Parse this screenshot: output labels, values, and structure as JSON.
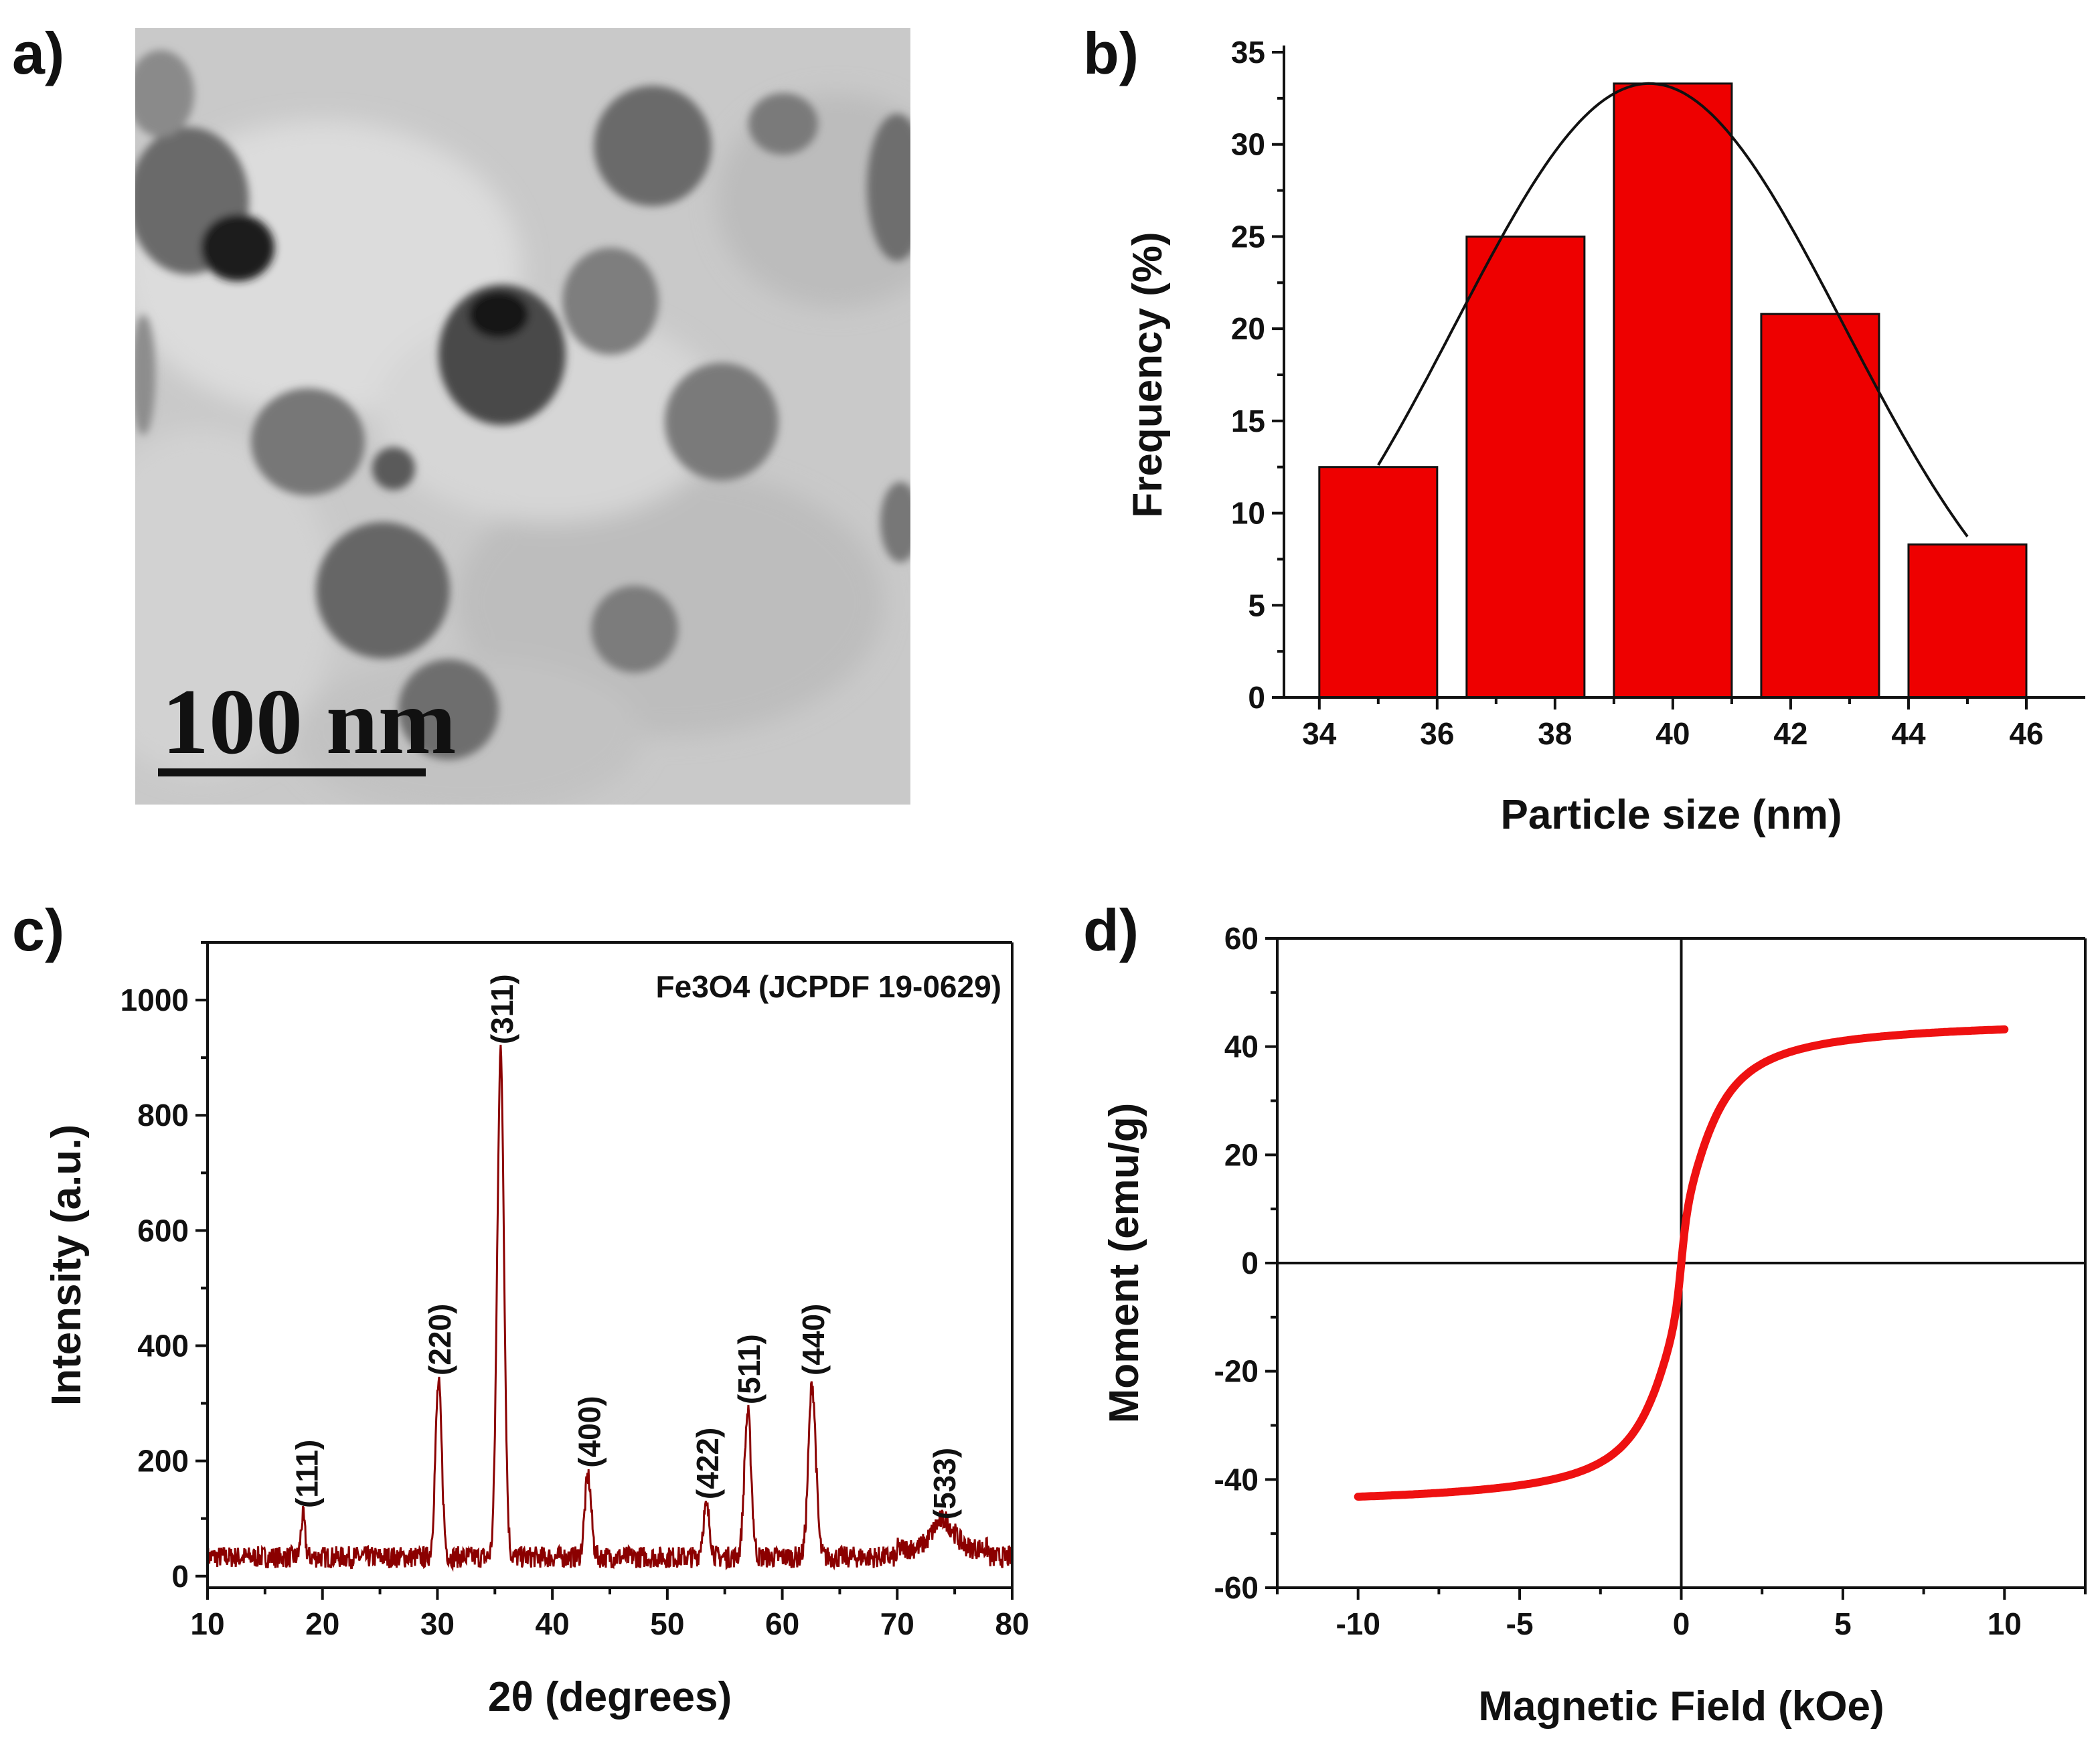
{
  "panel_labels": {
    "a": "a)",
    "b": "b)",
    "c": "c)",
    "d": "d)"
  },
  "tem": {
    "scale_text": "100 nm"
  },
  "chart_data": [
    {
      "id": "b",
      "type": "bar",
      "xlabel": "Particle size (nm)",
      "ylabel": "Frequency (%)",
      "xlim": [
        33.4,
        47.0
      ],
      "ylim": [
        0,
        35
      ],
      "xticks": [
        34,
        36,
        38,
        40,
        42,
        44,
        46
      ],
      "yticks": [
        0,
        5,
        10,
        15,
        20,
        25,
        30,
        35
      ],
      "bars": [
        {
          "x0": 34.0,
          "x1": 36.0,
          "value": 12.5
        },
        {
          "x0": 36.5,
          "x1": 38.5,
          "value": 25.0
        },
        {
          "x0": 39.0,
          "x1": 41.0,
          "value": 33.3
        },
        {
          "x0": 41.5,
          "x1": 43.5,
          "value": 20.8
        },
        {
          "x0": 44.0,
          "x1": 46.0,
          "value": 8.3
        }
      ],
      "fit": {
        "type": "gaussian",
        "center": 39.6,
        "amplitude": 33.3,
        "sigma": 3.3,
        "xrange": [
          35.0,
          45.0
        ]
      },
      "bar_color": "#ee0000",
      "fit_color": "#111111"
    },
    {
      "id": "c",
      "type": "line",
      "title": "Fe3O4 (JCPDF 19-0629)",
      "xlabel": "2θ (degrees)",
      "ylabel": "Intensity (a.u.)",
      "xlim": [
        10,
        80
      ],
      "ylim": [
        -20,
        1100
      ],
      "xticks": [
        10,
        20,
        30,
        40,
        50,
        60,
        70,
        80
      ],
      "yticks": [
        0,
        200,
        400,
        600,
        800,
        1000
      ],
      "peaks": [
        {
          "label": "(111)",
          "x": 18.3,
          "y": 95
        },
        {
          "label": "(220)",
          "x": 30.1,
          "y": 325
        },
        {
          "label": "(311)",
          "x": 35.5,
          "y": 900
        },
        {
          "label": "(400)",
          "x": 43.1,
          "y": 165
        },
        {
          "label": "(422)",
          "x": 53.4,
          "y": 110
        },
        {
          "label": "(511)",
          "x": 57.0,
          "y": 275
        },
        {
          "label": "(440)",
          "x": 62.6,
          "y": 325
        },
        {
          "label": "(533)",
          "x": 74.0,
          "y": 75
        }
      ],
      "line_color": "#8b0000"
    },
    {
      "id": "d",
      "type": "line",
      "xlabel": "Magnetic Field (kOe)",
      "ylabel": "Moment (emu/g)",
      "xlim": [
        -12.5,
        12.5
      ],
      "ylim": [
        -60,
        60
      ],
      "xticks": [
        -10,
        -5,
        0,
        5,
        10
      ],
      "yticks": [
        -60,
        -40,
        -20,
        0,
        20,
        40,
        60
      ],
      "saturation_ms": 45.3,
      "field_range": [
        -10,
        10
      ],
      "line_color": "#ee1111"
    }
  ]
}
